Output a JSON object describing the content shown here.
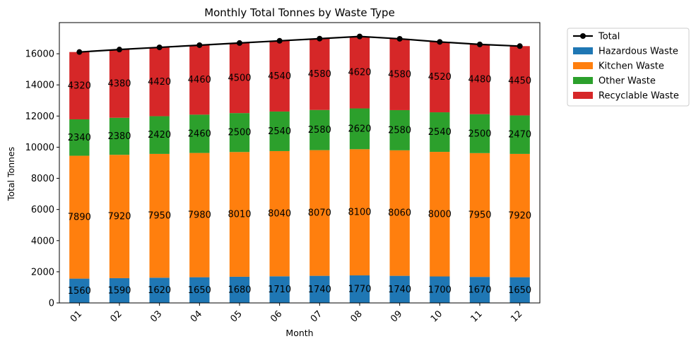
{
  "chart_data": {
    "type": "bar",
    "stacked": true,
    "title": "Monthly Total Tonnes by Waste Type",
    "xlabel": "Month",
    "ylabel": "Total Tonnes",
    "categories": [
      "01",
      "02",
      "03",
      "04",
      "05",
      "06",
      "07",
      "08",
      "09",
      "10",
      "11",
      "12"
    ],
    "ylim": [
      0,
      18000
    ],
    "yticks": [
      0,
      2000,
      4000,
      6000,
      8000,
      10000,
      12000,
      14000,
      16000
    ],
    "series": [
      {
        "name": "Hazardous Waste",
        "color": "#1f77b4",
        "values": [
          1560,
          1590,
          1620,
          1650,
          1680,
          1710,
          1740,
          1770,
          1740,
          1700,
          1670,
          1650
        ]
      },
      {
        "name": "Kitchen Waste",
        "color": "#ff7f0e",
        "values": [
          7890,
          7920,
          7950,
          7980,
          8010,
          8040,
          8070,
          8100,
          8060,
          8000,
          7950,
          7920
        ]
      },
      {
        "name": "Other Waste",
        "color": "#2ca02c",
        "values": [
          2340,
          2380,
          2420,
          2460,
          2500,
          2540,
          2580,
          2620,
          2580,
          2540,
          2500,
          2470
        ]
      },
      {
        "name": "Recyclable Waste",
        "color": "#d62728",
        "values": [
          4320,
          4380,
          4420,
          4460,
          4500,
          4540,
          4580,
          4620,
          4580,
          4520,
          4480,
          4450
        ]
      }
    ],
    "line": {
      "name": "Total",
      "color": "#000000",
      "values": [
        16110,
        16270,
        16410,
        16550,
        16690,
        16830,
        16970,
        17110,
        16960,
        16760,
        16600,
        16490
      ]
    },
    "legend_position": "outside-top-right",
    "grid": false
  }
}
